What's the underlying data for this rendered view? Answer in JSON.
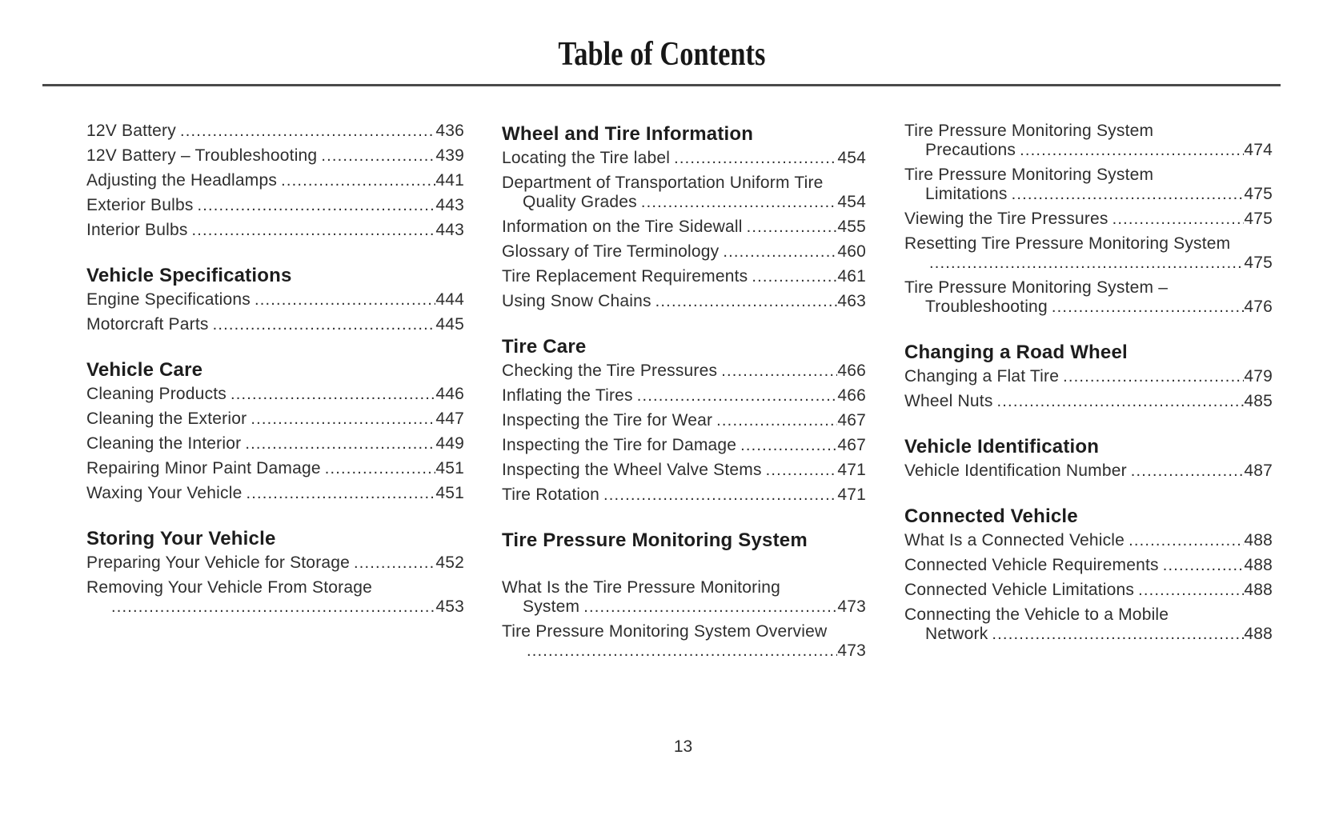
{
  "page": {
    "title": "Table of Contents",
    "page_number": "13"
  },
  "columns": [
    {
      "blocks": [
        {
          "items": [
            {
              "label": "12V Battery",
              "page": "436"
            },
            {
              "label": "12V Battery – Troubleshooting",
              "page": "439"
            },
            {
              "label": "Adjusting the Headlamps",
              "page": "441"
            },
            {
              "label": "Exterior Bulbs",
              "page": "443"
            },
            {
              "label": "Interior Bulbs",
              "page": "443"
            }
          ]
        },
        {
          "heading": "Vehicle Specifications",
          "items": [
            {
              "label": "Engine Specifications",
              "page": "444"
            },
            {
              "label": "Motorcraft Parts",
              "page": "445"
            }
          ]
        },
        {
          "heading": "Vehicle Care",
          "items": [
            {
              "label": "Cleaning Products",
              "page": "446"
            },
            {
              "label": "Cleaning the Exterior",
              "page": "447"
            },
            {
              "label": "Cleaning the Interior",
              "page": "449"
            },
            {
              "label": "Repairing Minor Paint Damage",
              "page": "451"
            },
            {
              "label": "Waxing Your Vehicle",
              "page": "451"
            }
          ]
        },
        {
          "heading": "Storing Your Vehicle",
          "items": [
            {
              "label": "Preparing Your Vehicle for Storage",
              "page": "452"
            },
            {
              "label": "Removing Your Vehicle From Storage",
              "wrap": "",
              "page": "453"
            }
          ]
        }
      ]
    },
    {
      "blocks": [
        {
          "heading": "Wheel and Tire Information",
          "items": [
            {
              "label": "Locating the Tire label",
              "page": "454"
            },
            {
              "label": "Department of Transportation Uniform Tire",
              "wrap": "Quality Grades",
              "page": "454"
            },
            {
              "label": "Information on the Tire Sidewall",
              "page": "455"
            },
            {
              "label": "Glossary of Tire Terminology",
              "page": "460"
            },
            {
              "label": "Tire Replacement Requirements",
              "page": "461"
            },
            {
              "label": "Using Snow Chains",
              "page": "463"
            }
          ]
        },
        {
          "heading": "Tire Care",
          "items": [
            {
              "label": "Checking the Tire Pressures",
              "page": "466"
            },
            {
              "label": "Inflating the Tires",
              "page": "466"
            },
            {
              "label": "Inspecting the Tire for Wear",
              "page": "467"
            },
            {
              "label": "Inspecting the Tire for Damage",
              "page": "467"
            },
            {
              "label": "Inspecting the Wheel Valve Stems",
              "page": "471"
            },
            {
              "label": "Tire Rotation",
              "page": "471"
            }
          ]
        },
        {
          "heading": "Tire Pressure Monitoring System",
          "extra_gap_before_items": true,
          "items": [
            {
              "label": "What Is the Tire Pressure Monitoring",
              "wrap": "System",
              "page": "473"
            },
            {
              "label": "Tire Pressure Monitoring System Overview",
              "wrap": "",
              "page": "473"
            }
          ]
        }
      ]
    },
    {
      "blocks": [
        {
          "items": [
            {
              "label": "Tire Pressure Monitoring System",
              "wrap": "Precautions",
              "page": "474"
            },
            {
              "label": "Tire Pressure Monitoring System",
              "wrap": "Limitations",
              "page": "475"
            },
            {
              "label": "Viewing the Tire Pressures",
              "page": "475"
            },
            {
              "label": "Resetting Tire Pressure Monitoring System",
              "wrap": "",
              "page": "475"
            },
            {
              "label": "Tire Pressure Monitoring System –",
              "wrap": "Troubleshooting",
              "page": "476"
            }
          ]
        },
        {
          "heading": "Changing a Road Wheel",
          "items": [
            {
              "label": "Changing a Flat Tire",
              "page": "479"
            },
            {
              "label": "Wheel Nuts",
              "page": "485"
            }
          ]
        },
        {
          "heading": "Vehicle Identification",
          "items": [
            {
              "label": "Vehicle Identification Number",
              "page": "487"
            }
          ]
        },
        {
          "heading": "Connected Vehicle",
          "items": [
            {
              "label": "What Is a Connected Vehicle",
              "page": "488"
            },
            {
              "label": "Connected Vehicle Requirements",
              "page": "488"
            },
            {
              "label": "Connected Vehicle Limitations",
              "page": "488"
            },
            {
              "label": "Connecting the Vehicle to a Mobile",
              "wrap": "Network",
              "page": "488"
            }
          ]
        }
      ]
    }
  ]
}
